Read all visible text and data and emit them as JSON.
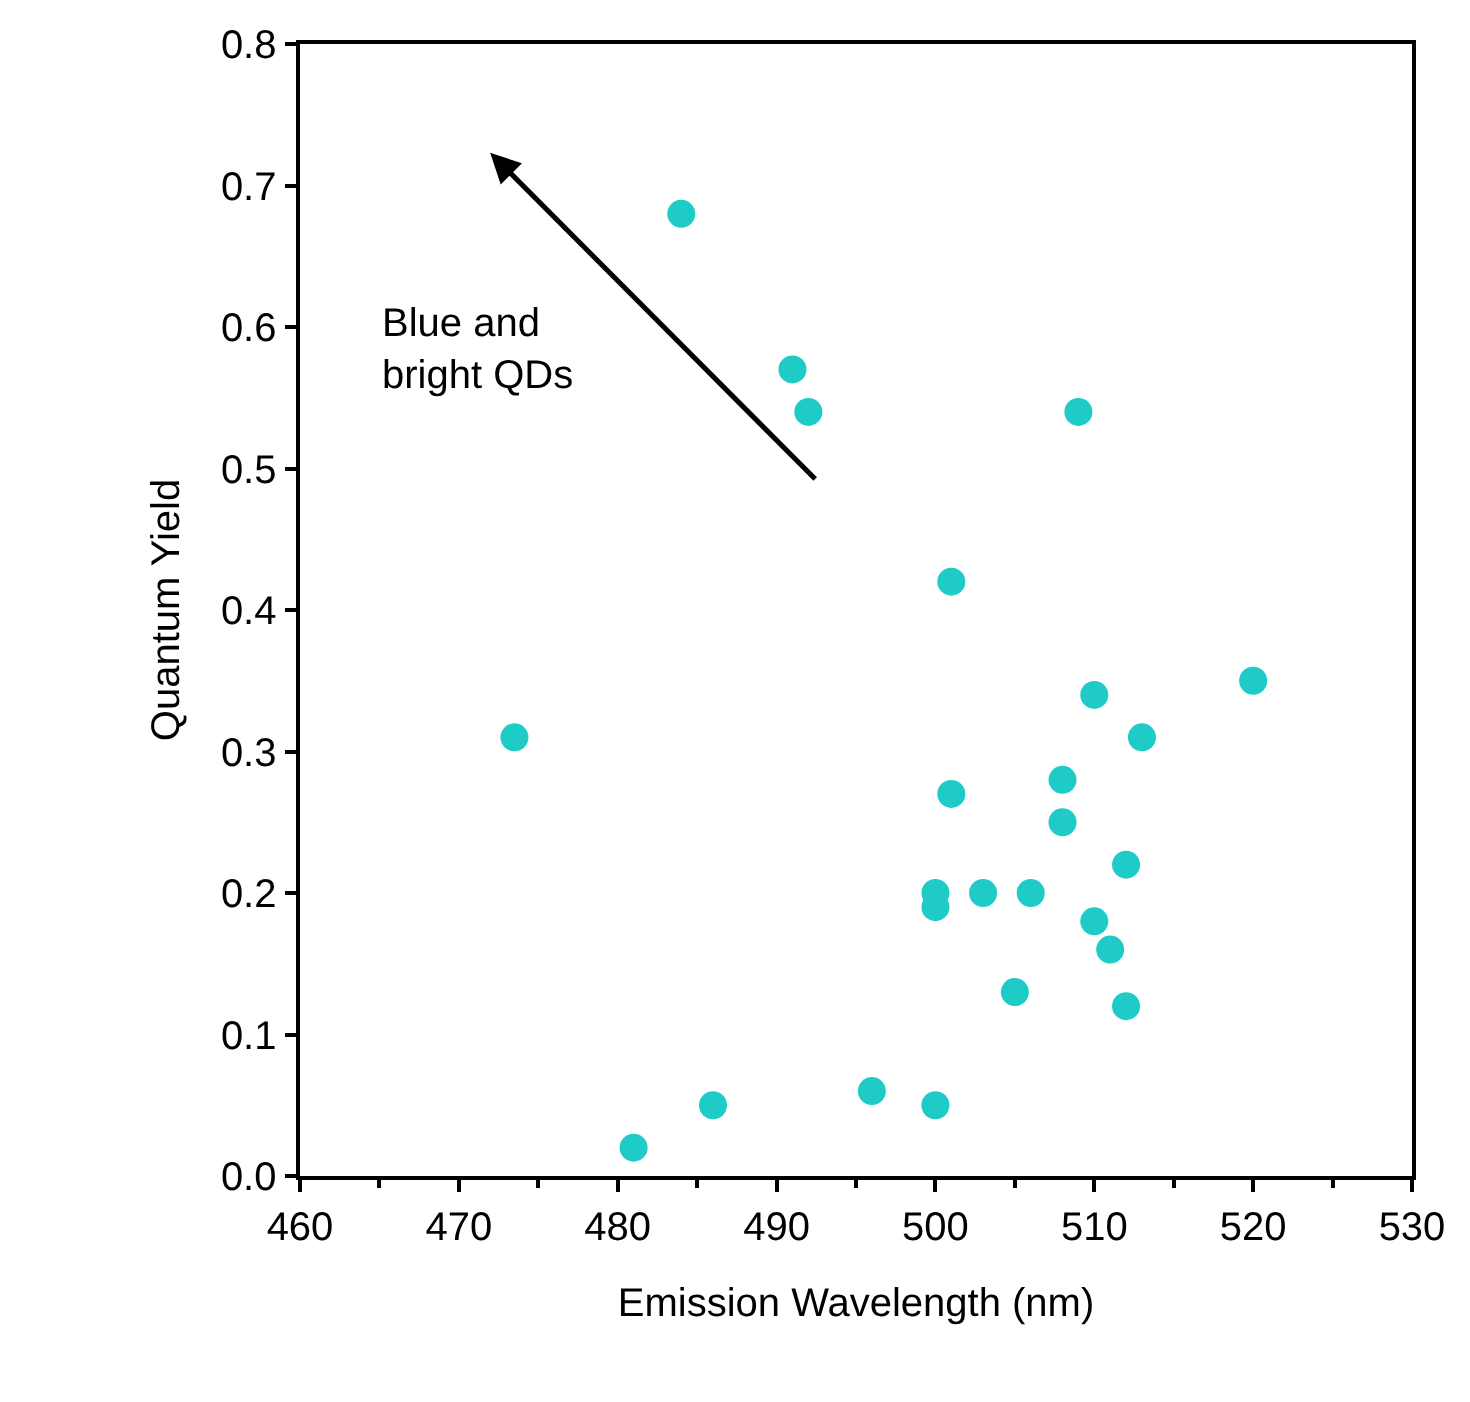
{
  "chart_data": {
    "type": "scatter",
    "xlabel": "Emission Wavelength (nm)",
    "ylabel": "Quantum Yield",
    "x": [
      484,
      491,
      492,
      509,
      501,
      473.5,
      520,
      510,
      513,
      508,
      501,
      508,
      512,
      500,
      500,
      503,
      506,
      510,
      511,
      505,
      512,
      496,
      500,
      486,
      481
    ],
    "values": [
      0.68,
      0.57,
      0.54,
      0.54,
      0.42,
      0.31,
      0.35,
      0.34,
      0.31,
      0.28,
      0.27,
      0.25,
      0.22,
      0.2,
      0.19,
      0.2,
      0.2,
      0.18,
      0.16,
      0.13,
      0.12,
      0.06,
      0.05,
      0.05,
      0.02
    ],
    "color": "#1fcbc6",
    "marker": "circle",
    "xlim": [
      460,
      530
    ],
    "xticks": [
      460,
      470,
      480,
      490,
      500,
      510,
      520,
      530
    ],
    "ylim": [
      0,
      0.8
    ],
    "yticks": [
      {
        "value": 0,
        "label": "0.0"
      },
      {
        "value": 0.1,
        "label": "0.1"
      },
      {
        "value": 0.2,
        "label": "0.2"
      },
      {
        "value": 0.3,
        "label": "0.3"
      },
      {
        "value": 0.4,
        "label": "0.4"
      },
      {
        "value": 0.5,
        "label": "0.5"
      },
      {
        "value": 0.6,
        "label": "0.6"
      },
      {
        "value": 0.7,
        "label": "0.7"
      },
      {
        "value": 0.8,
        "label": "0.8"
      }
    ],
    "annotations": [
      "Blue and\nbright QDs"
    ]
  }
}
